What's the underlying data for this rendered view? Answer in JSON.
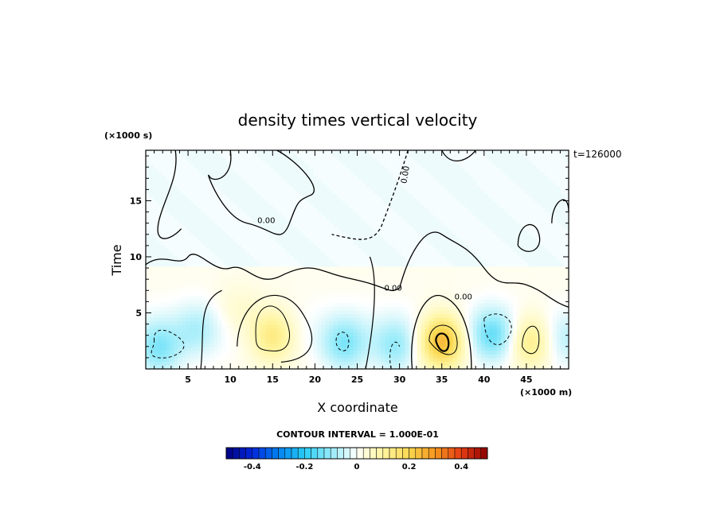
{
  "chart_data": {
    "type": "heatmap",
    "title": "density times vertical velocity",
    "xlabel": "X coordinate",
    "ylabel": "Time",
    "x_unit_label": "(×1000 m)",
    "y_unit_label": "(×1000 s)",
    "time_annotation": "t=126000",
    "xlim": [
      0,
      50
    ],
    "ylim": [
      0,
      19.5
    ],
    "x_ticks": [
      5,
      10,
      15,
      20,
      25,
      30,
      35,
      40,
      45
    ],
    "x_tick_labels": [
      "5",
      "10",
      "15",
      "20",
      "25",
      "30",
      "35",
      "40",
      "45"
    ],
    "y_ticks": [
      5,
      10,
      15
    ],
    "y_tick_labels": [
      "5",
      "10",
      "15"
    ],
    "contour_labels": [
      {
        "text": "0.00",
        "x": 13.2,
        "y": 13.0
      },
      {
        "text": "0.00",
        "x": 30.8,
        "y": 16.5
      },
      {
        "text": "0.00",
        "x": 28.2,
        "y": 7.0
      },
      {
        "text": "0.00",
        "x": 36.5,
        "y": 6.2
      }
    ],
    "contour_interval_label": "CONTOUR INTERVAL = 1.000E-01",
    "colorbar": {
      "min": -0.5,
      "max": 0.5,
      "levels": 40,
      "tick_values": [
        -0.4,
        -0.2,
        0,
        0.2,
        0.4
      ],
      "tick_labels": [
        "-0.4",
        "-0.2",
        "0",
        "0.2",
        "0.4"
      ]
    },
    "features": [
      {
        "kind": "negative",
        "x": 1.5,
        "y": 1.8,
        "amplitude": -0.12
      },
      {
        "kind": "negative",
        "x": 6.0,
        "y": 3.5,
        "amplitude": -0.07
      },
      {
        "kind": "positive",
        "x": 15.0,
        "y": 3.0,
        "amplitude": 0.14
      },
      {
        "kind": "positive",
        "x": 11.0,
        "y": 5.0,
        "amplitude": 0.04
      },
      {
        "kind": "negative",
        "x": 23.5,
        "y": 2.2,
        "amplitude": -0.12
      },
      {
        "kind": "negative",
        "x": 29.5,
        "y": 2.0,
        "amplitude": -0.1
      },
      {
        "kind": "positive",
        "x": 35.0,
        "y": 2.5,
        "amplitude": 0.25
      },
      {
        "kind": "negative",
        "x": 41.0,
        "y": 3.0,
        "amplitude": -0.14
      },
      {
        "kind": "positive",
        "x": 45.5,
        "y": 2.5,
        "amplitude": 0.13
      },
      {
        "kind": "negative",
        "x": 49.5,
        "y": 2.5,
        "amplitude": -0.06
      }
    ]
  }
}
